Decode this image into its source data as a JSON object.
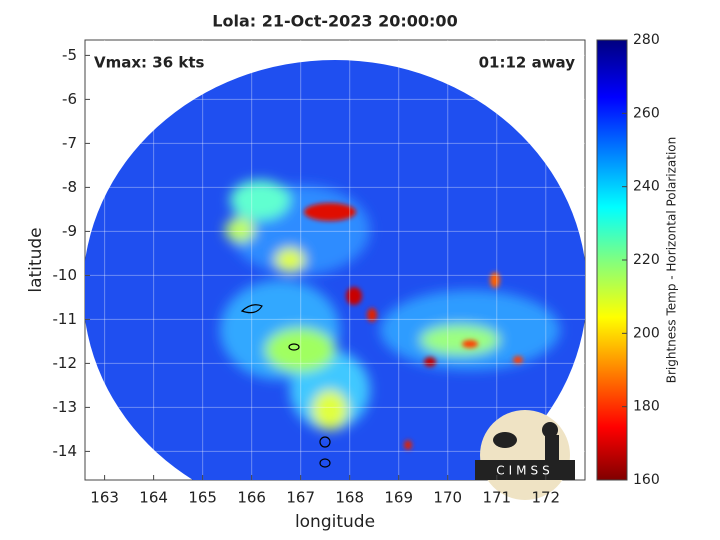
{
  "chart_data": {
    "type": "map",
    "title": "Lola: 21-Oct-2023 20:00:00",
    "annotations": [
      "Vmax: 36 kts",
      "01:12 away"
    ],
    "xlabel": "longitude",
    "ylabel": "latitude",
    "xlim": [
      162.6,
      172.8
    ],
    "xticks": [
      163,
      164,
      165,
      166,
      167,
      168,
      169,
      170,
      171,
      172
    ],
    "ylim": [
      -14.65,
      -4.65
    ],
    "yticks": [
      -5,
      -6,
      -7,
      -8,
      -9,
      -10,
      -11,
      -12,
      -13,
      -14
    ],
    "grid": true,
    "colorbar": {
      "label": "Brightness Temp - Horizontal Polarization",
      "lim": [
        160,
        280
      ],
      "ticks": [
        160,
        180,
        200,
        220,
        240,
        260,
        280
      ]
    },
    "logo": "CIMSS"
  }
}
